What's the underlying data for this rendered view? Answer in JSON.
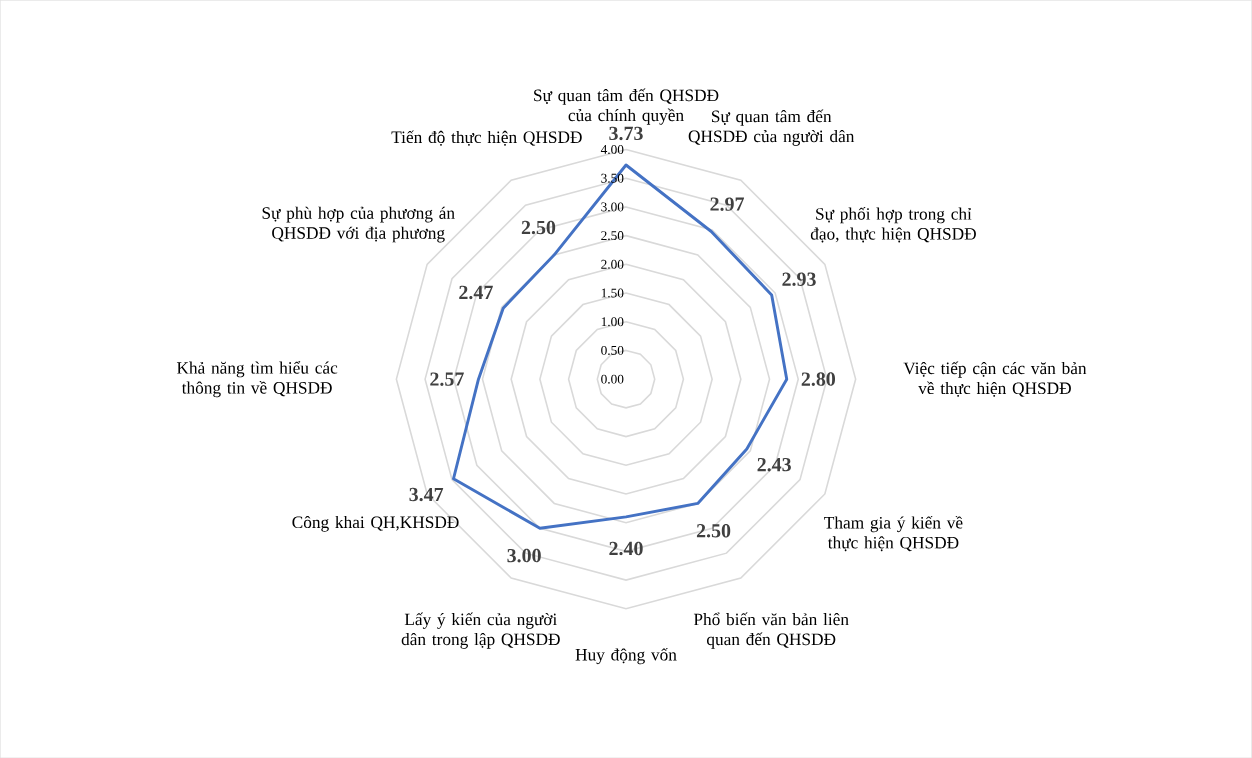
{
  "chart_data": {
    "type": "radar",
    "categories": [
      "Sự quan tâm đến QHSDĐ của chính quyền",
      "Sự quan tâm đến QHSDĐ của người dân",
      "Sự phối hợp trong chỉ đạo, thực hiện QHSDĐ",
      "Việc tiếp cận các văn bản về thực hiện QHSDĐ",
      "Tham gia ý kiến về thực hiện QHSDĐ",
      "Phổ biến văn bản liên quan đến QHSDĐ",
      "Huy động vốn",
      "Lấy ý kiến của người dân trong lập QHSDĐ",
      "Công khai QH,KHSDĐ",
      "Khả năng tìm hiểu các thông tin về QHSDĐ",
      "Sự phù hợp của phương án QHSDĐ với địa phương",
      "Tiến độ thực hiện QHSDĐ"
    ],
    "series": [
      {
        "color": "#4472c4",
        "values": [
          3.73,
          2.97,
          2.93,
          2.8,
          2.43,
          2.5,
          2.4,
          3.0,
          3.47,
          2.57,
          2.47,
          2.5
        ],
        "value_labels": [
          "3.73",
          "2.97",
          "2.93",
          "2.80",
          "2.43",
          "2.50",
          "2.40",
          "3.00",
          "3.47",
          "2.57",
          "2.47",
          "2.50"
        ]
      }
    ],
    "ylim": [
      0,
      4
    ],
    "yticks": [
      {
        "value": 0,
        "label": "0.00"
      },
      {
        "value": 0.5,
        "label": "0.50"
      },
      {
        "value": 1,
        "label": "1.00"
      },
      {
        "value": 1.5,
        "label": "1.50"
      },
      {
        "value": 2,
        "label": "2.00"
      },
      {
        "value": 2.5,
        "label": "2.50"
      },
      {
        "value": 3,
        "label": "3.00"
      },
      {
        "value": 3.5,
        "label": "3.50"
      },
      {
        "value": 4,
        "label": "4.00"
      }
    ],
    "grid": true,
    "marker": "none",
    "line_style": "solid"
  }
}
